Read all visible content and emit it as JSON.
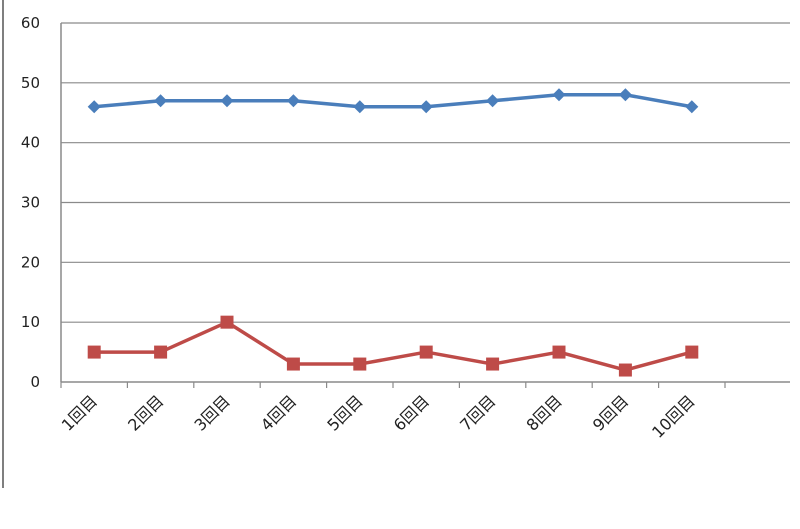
{
  "chart_data": {
    "type": "line",
    "title": "",
    "xlabel": "",
    "ylabel": "",
    "categories": [
      "1回目",
      "2回目",
      "3回目",
      "4回目",
      "5回目",
      "6回目",
      "7回目",
      "8回目",
      "9回目",
      "10回目"
    ],
    "ylim": [
      0,
      60
    ],
    "yticks": [
      0,
      10,
      20,
      30,
      40,
      50,
      60
    ],
    "grid": true,
    "legend": "none",
    "series": [
      {
        "color": "#4a7ebb",
        "marker": "diamond",
        "values": [
          46,
          47,
          47,
          47,
          46,
          46,
          47,
          48,
          48,
          46
        ]
      },
      {
        "color": "#be4b48",
        "marker": "square",
        "values": [
          5,
          5,
          10,
          3,
          3,
          5,
          3,
          5,
          2,
          5
        ]
      }
    ]
  }
}
